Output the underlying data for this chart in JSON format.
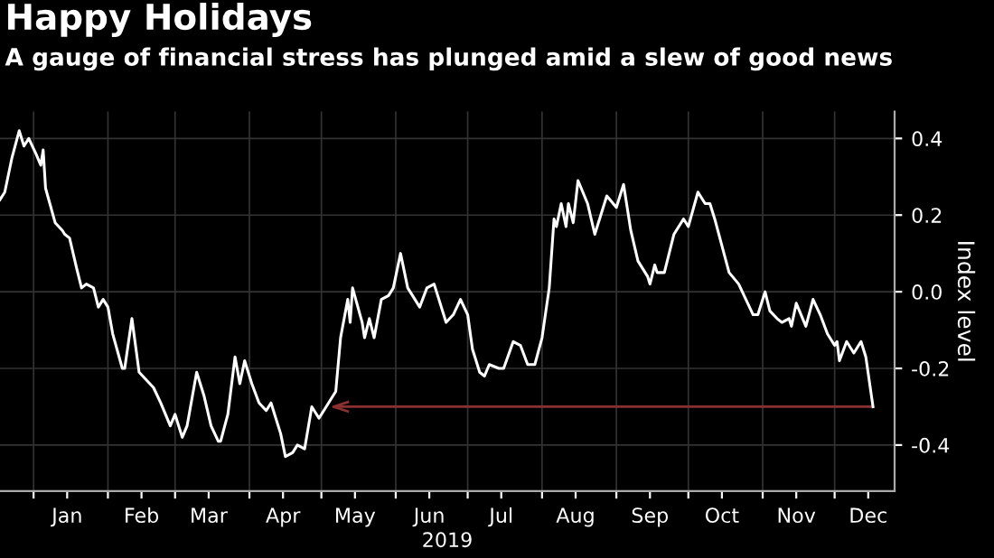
{
  "chart_data": {
    "type": "line",
    "title": "Happy Holidays",
    "subtitle": "A gauge of financial stress has plunged amid a slew of good news",
    "xlabel": "2019",
    "ylabel": "Index level",
    "x": [
      "2018-12-18",
      "2018-12-20",
      "2018-12-23",
      "2018-12-26",
      "2018-12-28",
      "2018-12-30",
      "2019-01-02",
      "2019-01-04",
      "2019-01-05",
      "2019-01-06",
      "2019-01-10",
      "2019-01-13",
      "2019-01-14",
      "2019-01-16",
      "2019-01-19",
      "2019-01-21",
      "2019-01-23",
      "2019-01-26",
      "2019-01-28",
      "2019-01-30",
      "2019-02-01",
      "2019-02-03",
      "2019-02-07",
      "2019-02-08",
      "2019-02-11",
      "2019-02-14",
      "2019-02-17",
      "2019-02-20",
      "2019-02-23",
      "2019-02-27",
      "2019-03-01",
      "2019-03-02",
      "2019-03-04",
      "2019-03-06",
      "2019-03-10",
      "2019-03-13",
      "2019-03-16",
      "2019-03-19",
      "2019-03-20",
      "2019-03-23",
      "2019-03-26",
      "2019-03-28",
      "2019-03-30",
      "2019-04-02",
      "2019-04-05",
      "2019-04-08",
      "2019-04-10",
      "2019-04-14",
      "2019-04-16",
      "2019-04-19",
      "2019-04-21",
      "2019-04-24",
      "2019-04-27",
      "2019-04-30",
      "2019-05-03",
      "2019-05-06",
      "2019-05-07",
      "2019-05-09",
      "2019-05-12",
      "2019-05-13",
      "2019-05-14",
      "2019-05-18",
      "2019-05-19",
      "2019-05-21",
      "2019-05-23",
      "2019-05-26",
      "2019-05-29",
      "2019-05-31",
      "2019-06-03",
      "2019-06-06",
      "2019-06-11",
      "2019-06-14",
      "2019-06-17",
      "2019-06-22",
      "2019-06-25",
      "2019-06-28",
      "2019-07-01",
      "2019-07-03",
      "2019-07-06",
      "2019-07-08",
      "2019-07-10",
      "2019-07-14",
      "2019-07-16",
      "2019-07-20",
      "2019-07-23",
      "2019-07-26",
      "2019-07-29",
      "2019-08-01",
      "2019-08-04",
      "2019-08-06",
      "2019-08-07",
      "2019-08-09",
      "2019-08-11",
      "2019-08-12",
      "2019-08-14",
      "2019-08-16",
      "2019-08-20",
      "2019-08-23",
      "2019-08-24",
      "2019-08-28",
      "2019-09-01",
      "2019-09-04",
      "2019-09-07",
      "2019-09-10",
      "2019-09-14",
      "2019-09-15",
      "2019-09-17",
      "2019-09-18",
      "2019-09-21",
      "2019-09-25",
      "2019-09-29",
      "2019-10-01",
      "2019-10-05",
      "2019-10-08",
      "2019-10-10",
      "2019-10-12",
      "2019-10-15",
      "2019-10-18",
      "2019-10-22",
      "2019-10-25",
      "2019-10-28",
      "2019-10-30",
      "2019-11-02",
      "2019-11-04",
      "2019-11-07",
      "2019-11-09",
      "2019-11-12",
      "2019-11-13",
      "2019-11-15",
      "2019-11-19",
      "2019-11-22",
      "2019-11-25",
      "2019-11-28",
      "2019-12-01",
      "2019-12-02",
      "2019-12-03",
      "2019-12-06",
      "2019-12-09",
      "2019-12-12",
      "2019-12-14",
      "2019-12-17"
    ],
    "series": [
      {
        "color": "#ffffff",
        "values": [
          0.24,
          0.26,
          0.35,
          0.42,
          0.38,
          0.4,
          0.36,
          0.33,
          0.37,
          0.27,
          0.18,
          0.16,
          0.15,
          0.14,
          0.06,
          0.01,
          0.02,
          0.01,
          -0.04,
          -0.02,
          -0.04,
          -0.11,
          -0.2,
          -0.2,
          -0.07,
          -0.21,
          -0.23,
          -0.25,
          -0.29,
          -0.35,
          -0.32,
          -0.34,
          -0.38,
          -0.35,
          -0.21,
          -0.27,
          -0.35,
          -0.39,
          -0.39,
          -0.32,
          -0.17,
          -0.24,
          -0.18,
          -0.24,
          -0.29,
          -0.31,
          -0.29,
          -0.37,
          -0.43,
          -0.42,
          -0.4,
          -0.41,
          -0.3,
          -0.33,
          -0.3,
          -0.27,
          -0.26,
          -0.12,
          -0.02,
          -0.08,
          0.01,
          -0.08,
          -0.12,
          -0.07,
          -0.12,
          -0.02,
          -0.01,
          0.01,
          0.1,
          0.01,
          -0.04,
          0.01,
          0.02,
          -0.08,
          -0.06,
          -0.02,
          -0.06,
          -0.15,
          -0.21,
          -0.22,
          -0.19,
          -0.2,
          -0.2,
          -0.13,
          -0.14,
          -0.19,
          -0.19,
          -0.12,
          0.01,
          0.19,
          0.17,
          0.23,
          0.17,
          0.23,
          0.18,
          0.29,
          0.23,
          0.15,
          0.17,
          0.25,
          0.22,
          0.28,
          0.16,
          0.08,
          0.04,
          0.02,
          0.07,
          0.05,
          0.05,
          0.15,
          0.19,
          0.17,
          0.26,
          0.23,
          0.23,
          0.19,
          0.12,
          0.05,
          0.02,
          -0.02,
          -0.06,
          -0.06,
          0.0,
          -0.05,
          -0.07,
          -0.08,
          -0.07,
          -0.09,
          -0.03,
          -0.09,
          -0.02,
          -0.06,
          -0.11,
          -0.14,
          -0.13,
          -0.18,
          -0.13,
          -0.16,
          -0.13,
          -0.17,
          -0.3
        ]
      }
    ],
    "xlim": [
      "2018-12-18",
      "2019-12-26"
    ],
    "xticks": [
      {
        "value": "2019-01-01",
        "label": null
      },
      {
        "value": "2019-01-15",
        "label": "Jan"
      },
      {
        "value": "2019-02-01",
        "label": null
      },
      {
        "value": "2019-02-15",
        "label": "Feb"
      },
      {
        "value": "2019-03-01",
        "label": null
      },
      {
        "value": "2019-03-15",
        "label": "Mar"
      },
      {
        "value": "2019-04-01",
        "label": null
      },
      {
        "value": "2019-04-15",
        "label": "Apr"
      },
      {
        "value": "2019-05-01",
        "label": null
      },
      {
        "value": "2019-05-15",
        "label": "May"
      },
      {
        "value": "2019-06-01",
        "label": null
      },
      {
        "value": "2019-06-15",
        "label": "Jun"
      },
      {
        "value": "2019-07-01",
        "label": null
      },
      {
        "value": "2019-07-15",
        "label": "Jul"
      },
      {
        "value": "2019-08-01",
        "label": null
      },
      {
        "value": "2019-08-15",
        "label": "Aug"
      },
      {
        "value": "2019-09-01",
        "label": null
      },
      {
        "value": "2019-09-15",
        "label": "Sep"
      },
      {
        "value": "2019-10-01",
        "label": null
      },
      {
        "value": "2019-10-15",
        "label": "Oct"
      },
      {
        "value": "2019-11-01",
        "label": null
      },
      {
        "value": "2019-11-15",
        "label": "Nov"
      },
      {
        "value": "2019-12-01",
        "label": null
      },
      {
        "value": "2019-12-15",
        "label": "Dec"
      }
    ],
    "ylim": [
      -0.52,
      0.47
    ],
    "yticks": [
      {
        "value": -0.4,
        "label": "-0.4"
      },
      {
        "value": -0.2,
        "label": "-0.2"
      },
      {
        "value": 0.0,
        "label": "0.0"
      },
      0.2,
      0.4
    ],
    "ref_lines": [
      {
        "axis": "y",
        "value": -0.3,
        "color": "#8b3030"
      }
    ],
    "grid": true,
    "legend": false,
    "marker": "none",
    "line_style": "solid"
  }
}
